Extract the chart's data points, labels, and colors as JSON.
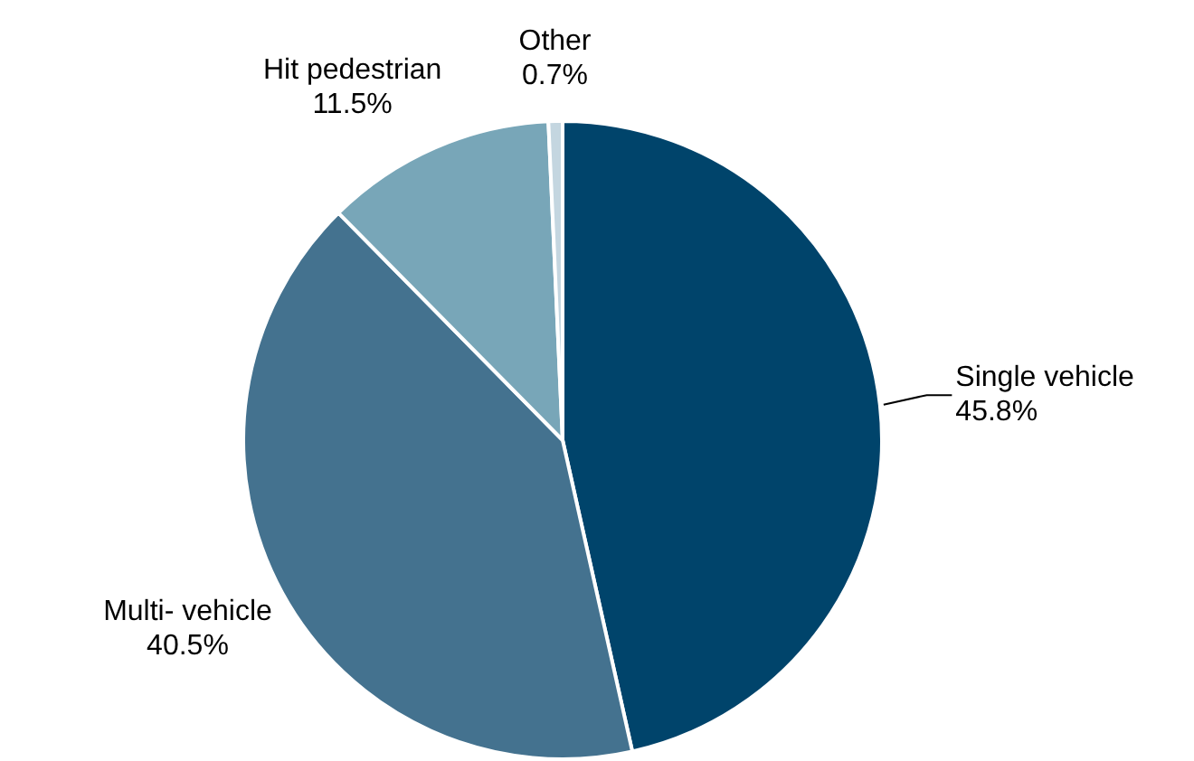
{
  "chart_data": {
    "type": "pie",
    "categories": [
      "Single vehicle",
      "Multi- vehicle",
      "Hit pedestrian",
      "Other"
    ],
    "values": [
      45.8,
      40.5,
      11.5,
      0.7
    ],
    "value_labels": [
      "45.8%",
      "40.5%",
      "11.5%",
      "0.7%"
    ],
    "colors": [
      "#00446b",
      "#44728f",
      "#78a6b8",
      "#c4d6e0"
    ],
    "legend": false
  }
}
